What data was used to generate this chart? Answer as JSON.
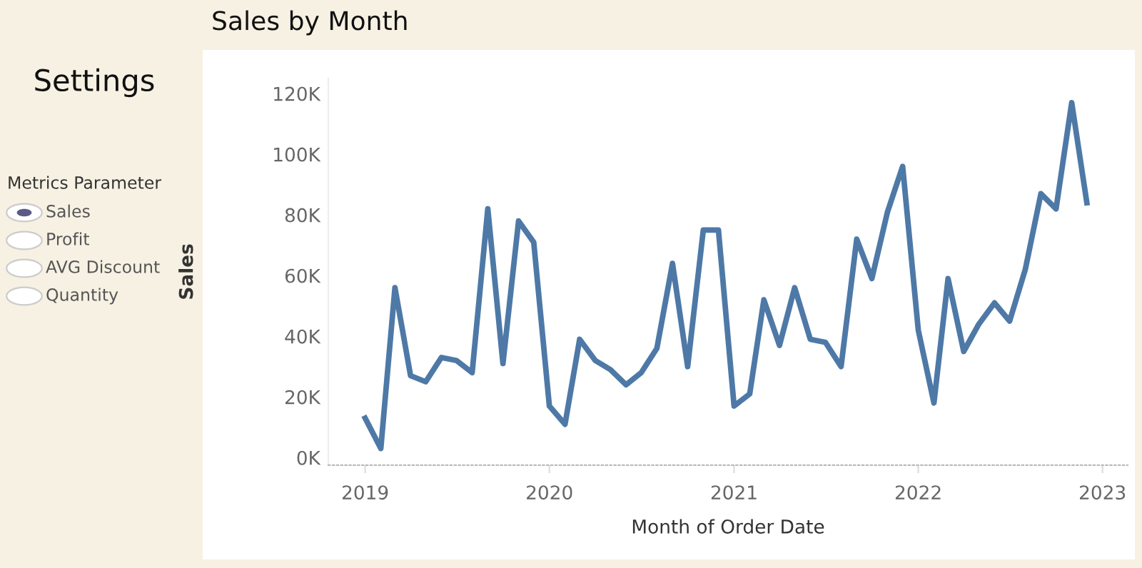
{
  "chart_data": {
    "type": "line",
    "title": "Sales by Month",
    "xlabel": "Month of Order Date",
    "ylabel": "Sales",
    "annotations": [
      "Settings",
      "Metrics Parameter",
      "Sales",
      "Profit",
      "AVG Discount",
      "Quantity"
    ],
    "x": [
      "2019-01",
      "2019-02",
      "2019-03",
      "2019-04",
      "2019-05",
      "2019-06",
      "2019-07",
      "2019-08",
      "2019-09",
      "2019-10",
      "2019-11",
      "2019-12",
      "2020-01",
      "2020-02",
      "2020-03",
      "2020-04",
      "2020-05",
      "2020-06",
      "2020-07",
      "2020-08",
      "2020-09",
      "2020-10",
      "2020-11",
      "2020-12",
      "2021-01",
      "2021-02",
      "2021-03",
      "2021-04",
      "2021-05",
      "2021-06",
      "2021-07",
      "2021-08",
      "2021-09",
      "2021-10",
      "2021-11",
      "2021-12",
      "2022-01",
      "2022-02",
      "2022-03",
      "2022-04",
      "2022-05",
      "2022-06",
      "2022-07",
      "2022-08",
      "2022-09",
      "2022-10",
      "2022-11",
      "2022-12"
    ],
    "series": [
      {
        "color": "#4e79a7",
        "values": [
          13000,
          3000,
          56000,
          27000,
          25000,
          33000,
          32000,
          28000,
          82000,
          31000,
          78000,
          71000,
          17000,
          11000,
          39000,
          32000,
          29000,
          24000,
          28000,
          36000,
          64000,
          30000,
          75000,
          75000,
          17000,
          21000,
          52000,
          37000,
          56000,
          39000,
          38000,
          30000,
          72000,
          59000,
          81000,
          96000,
          42000,
          18000,
          59000,
          35000,
          44000,
          51000,
          45000,
          62000,
          87000,
          82000,
          117000,
          84000
        ]
      }
    ],
    "xlim": [
      "2018-10-20",
      "2023-02-20"
    ],
    "ylim": [
      -2500,
      125000
    ],
    "xticks": [
      {
        "value": "2019",
        "label": "2019"
      },
      {
        "value": "2020",
        "label": "2020"
      },
      {
        "value": "2021",
        "label": "2021"
      },
      {
        "value": "2022",
        "label": "2022"
      },
      {
        "value": "2023",
        "label": "2023"
      }
    ],
    "yticks": [
      {
        "value": 0,
        "label": "0K"
      },
      {
        "value": 20000,
        "label": "20K"
      },
      {
        "value": 40000,
        "label": "40K"
      },
      {
        "value": 60000,
        "label": "60K"
      },
      {
        "value": 80000,
        "label": "80K"
      },
      {
        "value": 100000,
        "label": "100K"
      },
      {
        "value": 120000,
        "label": "120K"
      }
    ],
    "grid": false,
    "marker": "none",
    "line_style": "solid"
  }
}
